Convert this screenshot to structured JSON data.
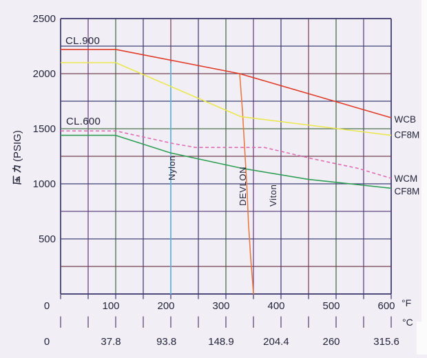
{
  "page": {
    "background": "#f1eff5"
  },
  "chart_data": {
    "type": "line",
    "title": "",
    "ylabel": "压力(PSIG)",
    "ylabel_cjk": "压力",
    "ylabel_latin": "(PSIG)",
    "grid": "on",
    "legend_position": "right-edge",
    "x_axis": {
      "unit_primary": "°F",
      "unit_secondary": "°C",
      "min_f": 0,
      "max_f": 600,
      "grid_step_f": 50,
      "ticks_f": [
        "0",
        "100",
        "200",
        "300",
        "400",
        "500",
        "600"
      ],
      "ticks_c": [
        "0",
        "37.8",
        "93.8",
        "148.9",
        "204.4",
        "260",
        "315.6"
      ]
    },
    "y_axis": {
      "min": 0,
      "max": 2500,
      "grid_step": 250,
      "ticks": [
        "2500",
        "2000",
        "1500",
        "1000",
        "500",
        "0"
      ]
    },
    "pressure_class_labels": [
      {
        "text": "CL.900"
      },
      {
        "text": "CL.600"
      }
    ],
    "series": [
      {
        "name": "CL.900 WCB",
        "right_label": "WCB",
        "color": "#e13a28",
        "line_style": "solid",
        "points_f_psig": [
          [
            0,
            2220
          ],
          [
            100,
            2220
          ],
          [
            325,
            2000
          ],
          [
            600,
            1600
          ]
        ]
      },
      {
        "name": "CL.900 CF8M",
        "right_label": "CF8M",
        "color": "#eae74e",
        "line_style": "solid",
        "points_f_psig": [
          [
            0,
            2100
          ],
          [
            100,
            2100
          ],
          [
            327,
            1610
          ],
          [
            600,
            1440
          ]
        ]
      },
      {
        "name": "CL.600 WCM",
        "right_label": "WCM",
        "color": "#df6cb4",
        "line_style": "dashed",
        "points_f_psig": [
          [
            0,
            1480
          ],
          [
            100,
            1480
          ],
          [
            205,
            1365
          ],
          [
            245,
            1330
          ],
          [
            370,
            1330
          ],
          [
            455,
            1230
          ],
          [
            540,
            1140
          ],
          [
            600,
            1050
          ]
        ]
      },
      {
        "name": "CL.600 CF8M",
        "right_label": "CF8M",
        "color": "#2f9e54",
        "line_style": "solid",
        "points_f_psig": [
          [
            0,
            1440
          ],
          [
            100,
            1440
          ],
          [
            200,
            1280
          ],
          [
            330,
            1140
          ],
          [
            450,
            1040
          ],
          [
            600,
            960
          ]
        ]
      }
    ],
    "seat_limit_lines": [
      {
        "label": "Nylon",
        "color": "#5cb9e8",
        "points_f_psig": [
          [
            200,
            0
          ],
          [
            200,
            2090
          ]
        ]
      },
      {
        "label": "DEVLON",
        "color": "#e97840",
        "points_f_psig": [
          [
            325,
            2000
          ],
          [
            330,
            1670
          ],
          [
            334,
            1325
          ],
          [
            338,
            980
          ],
          [
            341,
            640
          ],
          [
            345,
            325
          ],
          [
            348,
            140
          ],
          [
            350,
            0
          ]
        ]
      },
      {
        "label": "Viton",
        "color": null,
        "points_f_psig": []
      }
    ]
  },
  "colors": {
    "background": "#f1eff5",
    "grid_dark": "#37336b",
    "text": "#23233a"
  }
}
